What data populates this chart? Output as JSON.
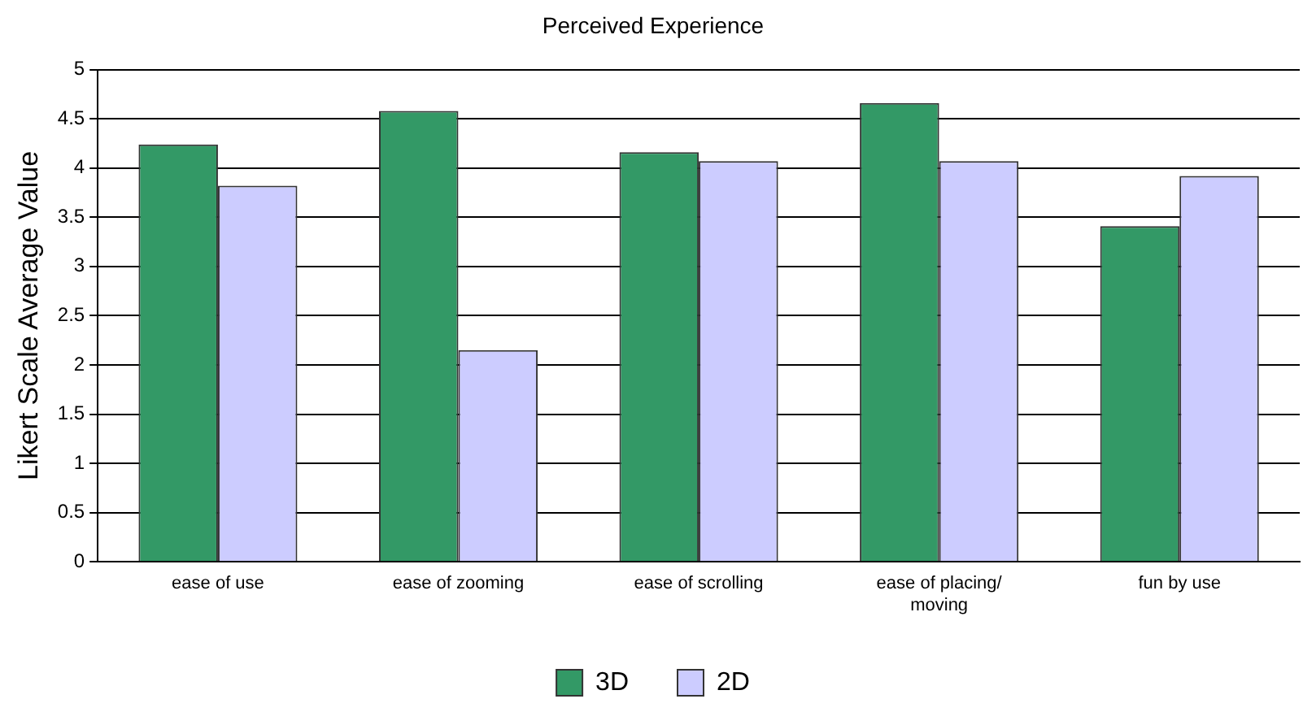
{
  "chart_data": {
    "type": "bar",
    "title": "Perceived Experience",
    "ylabel": "Likert Scale Average Value",
    "categories": [
      "ease of use",
      "ease of zooming",
      "ease of scrolling",
      "ease of placing/\nmoving",
      "fun by use"
    ],
    "series": [
      {
        "name": "3D",
        "color": "#339966",
        "values": [
          4.24,
          4.58,
          4.16,
          4.66,
          3.41
        ]
      },
      {
        "name": "2D",
        "color": "#ccccff",
        "values": [
          3.82,
          2.15,
          4.07,
          4.07,
          3.92
        ]
      }
    ],
    "ylim": [
      0,
      5
    ],
    "yticks": [
      0,
      0.5,
      1,
      1.5,
      2,
      2.5,
      3,
      3.5,
      4,
      4.5,
      5
    ],
    "grid": "y",
    "legend": "bottom"
  }
}
